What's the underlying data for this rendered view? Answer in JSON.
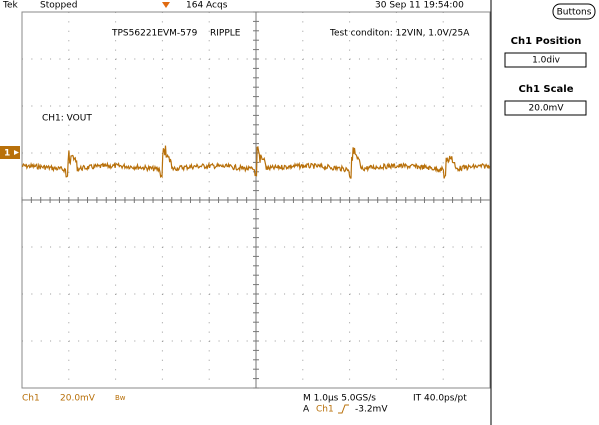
{
  "header": {
    "brand": "Tek",
    "status": "Stopped",
    "acquisitions": "164 Acqs",
    "timestamp": "30 Sep 11 19:54:00"
  },
  "screen": {
    "title": "TPS56221EVM-579",
    "mode": "RIPPLE",
    "conditions": "Test conditon: 12VIN, 1.0V/25A",
    "channel_label": "CH1: VOUT",
    "channel_marker": "1"
  },
  "footer": {
    "channel": "Ch1",
    "scale": "20.0mV",
    "bandwidth": "Bw",
    "timebase": "M 1.0µs 5.0GS/s",
    "record": "IT 40.0ps/pt",
    "trigger_mode": "A",
    "trigger_source": "Ch1",
    "trigger_level": "-3.2mV"
  },
  "side_panel": {
    "button": "Buttons",
    "position_label": "Ch1 Position",
    "position_value": "1.0div",
    "scale_label": "Ch1 Scale",
    "scale_value": "20.0mV"
  }
}
